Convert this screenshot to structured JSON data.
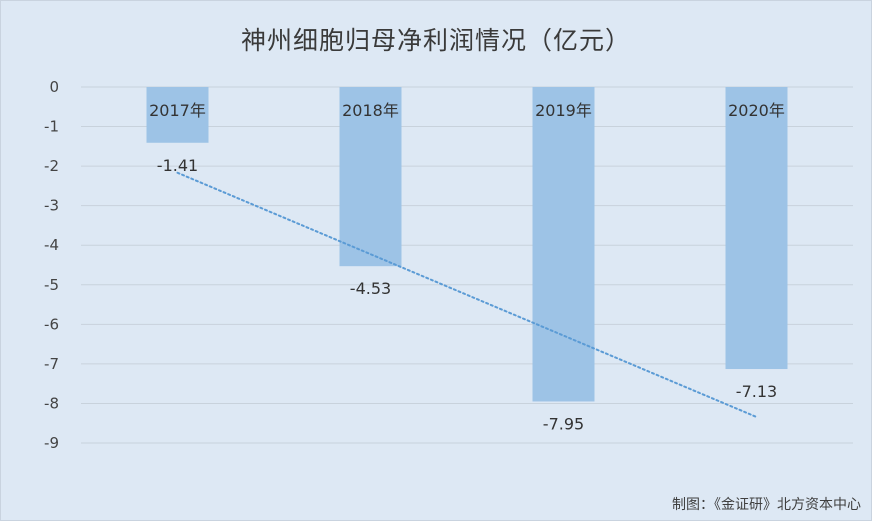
{
  "chart_data": {
    "type": "bar",
    "title": "神州细胞归母净利润情况（亿元）",
    "categories": [
      "2017年",
      "2018年",
      "2019年",
      "2020年"
    ],
    "values": [
      -1.41,
      -4.53,
      -7.95,
      -7.13
    ],
    "data_labels": [
      "-1.41",
      "-4.53",
      "-7.95",
      "-7.13"
    ],
    "ylim": [
      -9,
      0
    ],
    "yticks": [
      0,
      -1,
      -2,
      -3,
      -4,
      -5,
      -6,
      -7,
      -8,
      -9
    ],
    "ytick_labels": [
      "0",
      "-1",
      "-2",
      "-3",
      "-4",
      "-5",
      "-6",
      "-7",
      "-8",
      "-9"
    ],
    "grid": true,
    "trendline": {
      "type": "linear",
      "style": "dotted"
    },
    "bar_color": "#9dc3e6",
    "trend_color": "#5b9bd5",
    "grid_color": "#c8d2dc"
  },
  "footer": {
    "credit": "制图：《金证研》北方资本中心"
  }
}
